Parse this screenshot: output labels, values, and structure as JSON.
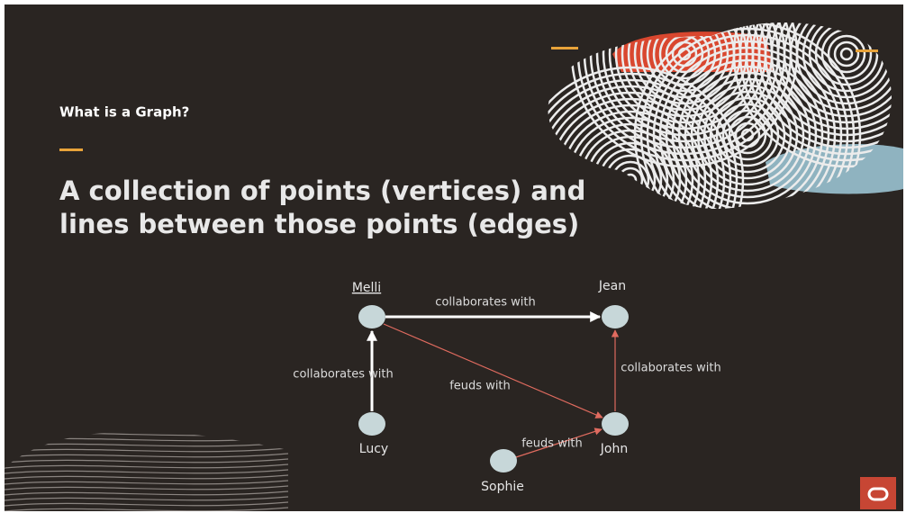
{
  "header": {
    "title": "What is a Graph?"
  },
  "heading": {
    "lines": [
      "A collection of points (vertices) and",
      "lines between those points (edges)"
    ]
  },
  "nodes": [
    {
      "label": "Melli"
    },
    {
      "label": "Jean"
    },
    {
      "label": "Lucy"
    },
    {
      "label": "John"
    },
    {
      "label": "Sophie"
    }
  ],
  "edges": [
    {
      "label": "collaborates with"
    },
    {
      "label": "collaborates with"
    },
    {
      "label": "collaborates with"
    },
    {
      "label": "feuds with"
    },
    {
      "label": "feuds with"
    }
  ]
}
